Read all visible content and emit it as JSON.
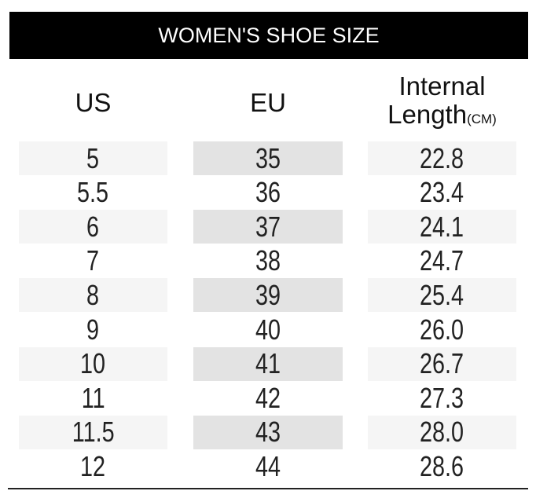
{
  "title": "WOMEN'S SHOE SIZE",
  "headers": {
    "us": "US",
    "eu": "EU",
    "length_line1": "Internal",
    "length_line2": "Length",
    "length_unit": "(CM)"
  },
  "rows": [
    [
      "5",
      "35",
      "22.8"
    ],
    [
      "5.5",
      "36",
      "23.4"
    ],
    [
      "6",
      "37",
      "24.1"
    ],
    [
      "7",
      "38",
      "24.7"
    ],
    [
      "8",
      "39",
      "25.4"
    ],
    [
      "9",
      "40",
      "26.0"
    ],
    [
      "10",
      "41",
      "26.7"
    ],
    [
      "11",
      "42",
      "27.3"
    ],
    [
      "11.5",
      "43",
      "28.0"
    ],
    [
      "12",
      "44",
      "28.6"
    ]
  ]
}
